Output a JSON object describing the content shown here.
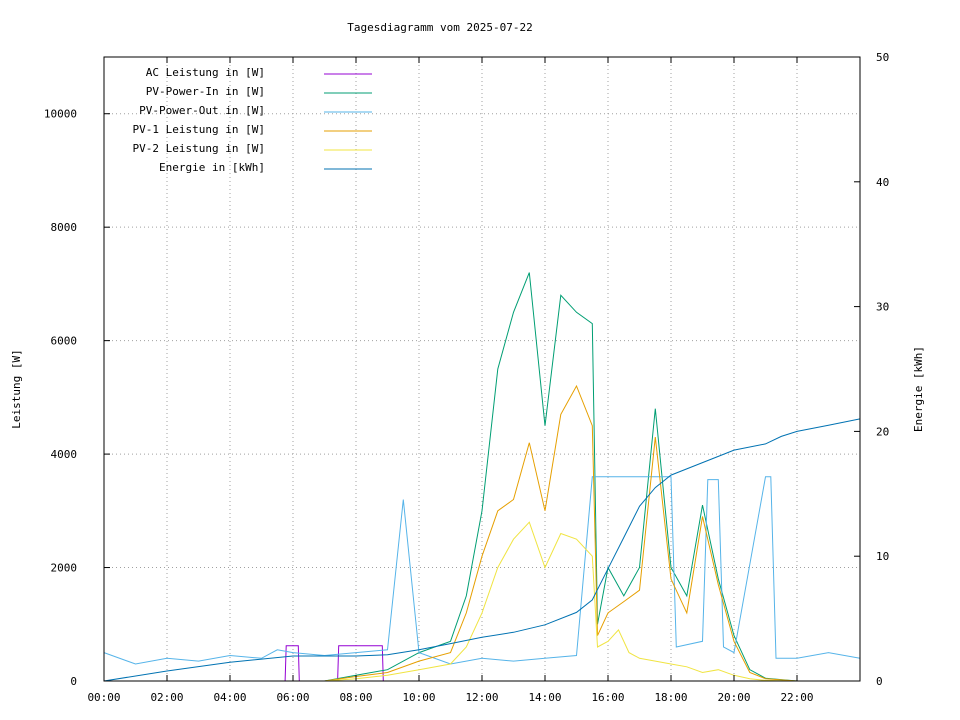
{
  "chart_data": {
    "type": "line",
    "title": "Tagesdiagramm vom 2025-07-22",
    "ylabel": "Leistung [W]",
    "y2label": "Energie [kWh]",
    "xlim": [
      "00:00",
      "24:00"
    ],
    "ylim": [
      0,
      11000
    ],
    "y2lim": [
      0,
      50
    ],
    "x_ticks": [
      "00:00",
      "02:00",
      "04:00",
      "06:00",
      "08:00",
      "10:00",
      "12:00",
      "14:00",
      "16:00",
      "18:00",
      "20:00",
      "22:00"
    ],
    "y_ticks": [
      0,
      2000,
      4000,
      6000,
      8000,
      10000
    ],
    "y2_ticks": [
      0,
      10,
      20,
      30,
      40,
      50
    ],
    "grid": true,
    "legend_position": "top-left",
    "series": [
      {
        "name": "AC Leistung in [W]",
        "color": "#9400d3",
        "axis": "left",
        "points": [
          [
            "00:00",
            0
          ],
          [
            "05:45",
            0
          ],
          [
            "05:47",
            620
          ],
          [
            "06:10",
            620
          ],
          [
            "06:12",
            0
          ],
          [
            "07:25",
            0
          ],
          [
            "07:27",
            620
          ],
          [
            "08:50",
            620
          ],
          [
            "08:52",
            0
          ],
          [
            "24:00",
            0
          ]
        ]
      },
      {
        "name": "PV-Power-In in [W]",
        "color": "#009e73",
        "axis": "left",
        "points": [
          [
            "00:00",
            0
          ],
          [
            "07:00",
            0
          ],
          [
            "08:00",
            100
          ],
          [
            "09:00",
            200
          ],
          [
            "10:00",
            500
          ],
          [
            "11:00",
            700
          ],
          [
            "11:30",
            1500
          ],
          [
            "12:00",
            3000
          ],
          [
            "12:30",
            5500
          ],
          [
            "13:00",
            6500
          ],
          [
            "13:30",
            7200
          ],
          [
            "14:00",
            4500
          ],
          [
            "14:30",
            6800
          ],
          [
            "15:00",
            6500
          ],
          [
            "15:30",
            6300
          ],
          [
            "15:40",
            1000
          ],
          [
            "16:00",
            2000
          ],
          [
            "16:30",
            1500
          ],
          [
            "17:00",
            2000
          ],
          [
            "17:30",
            4800
          ],
          [
            "18:00",
            2000
          ],
          [
            "18:30",
            1500
          ],
          [
            "19:00",
            3100
          ],
          [
            "19:30",
            1800
          ],
          [
            "20:00",
            800
          ],
          [
            "20:30",
            200
          ],
          [
            "21:00",
            50
          ],
          [
            "22:00",
            0
          ],
          [
            "24:00",
            0
          ]
        ]
      },
      {
        "name": "PV-Power-Out in [W]",
        "color": "#56b4e9",
        "axis": "left",
        "points": [
          [
            "00:00",
            500
          ],
          [
            "01:00",
            300
          ],
          [
            "02:00",
            400
          ],
          [
            "03:00",
            350
          ],
          [
            "04:00",
            450
          ],
          [
            "05:00",
            400
          ],
          [
            "05:30",
            550
          ],
          [
            "06:00",
            500
          ],
          [
            "07:00",
            450
          ],
          [
            "08:00",
            500
          ],
          [
            "09:00",
            550
          ],
          [
            "09:30",
            3200
          ],
          [
            "10:00",
            500
          ],
          [
            "11:00",
            300
          ],
          [
            "12:00",
            400
          ],
          [
            "13:00",
            350
          ],
          [
            "14:00",
            400
          ],
          [
            "15:00",
            450
          ],
          [
            "15:30",
            3600
          ],
          [
            "18:00",
            3600
          ],
          [
            "18:10",
            600
          ],
          [
            "19:00",
            700
          ],
          [
            "19:10",
            3550
          ],
          [
            "19:30",
            3550
          ],
          [
            "19:40",
            600
          ],
          [
            "20:00",
            500
          ],
          [
            "21:00",
            3600
          ],
          [
            "21:10",
            3600
          ],
          [
            "21:20",
            400
          ],
          [
            "22:00",
            400
          ],
          [
            "23:00",
            500
          ],
          [
            "24:00",
            400
          ]
        ]
      },
      {
        "name": "PV-1 Leistung in [W]",
        "color": "#e69f00",
        "axis": "left",
        "points": [
          [
            "00:00",
            0
          ],
          [
            "07:00",
            0
          ],
          [
            "08:00",
            80
          ],
          [
            "09:00",
            150
          ],
          [
            "10:00",
            350
          ],
          [
            "11:00",
            500
          ],
          [
            "11:30",
            1200
          ],
          [
            "12:00",
            2200
          ],
          [
            "12:30",
            3000
          ],
          [
            "13:00",
            3200
          ],
          [
            "13:30",
            4200
          ],
          [
            "14:00",
            3000
          ],
          [
            "14:30",
            4700
          ],
          [
            "15:00",
            5200
          ],
          [
            "15:30",
            4500
          ],
          [
            "15:40",
            800
          ],
          [
            "16:00",
            1200
          ],
          [
            "16:30",
            1400
          ],
          [
            "17:00",
            1600
          ],
          [
            "17:30",
            4300
          ],
          [
            "18:00",
            1800
          ],
          [
            "18:30",
            1200
          ],
          [
            "19:00",
            2900
          ],
          [
            "19:30",
            1700
          ],
          [
            "20:00",
            700
          ],
          [
            "20:30",
            150
          ],
          [
            "21:00",
            40
          ],
          [
            "22:00",
            0
          ],
          [
            "24:00",
            0
          ]
        ]
      },
      {
        "name": "PV-2 Leistung in [W]",
        "color": "#f0e442",
        "axis": "left",
        "points": [
          [
            "00:00",
            0
          ],
          [
            "07:00",
            0
          ],
          [
            "08:00",
            40
          ],
          [
            "09:00",
            100
          ],
          [
            "10:00",
            200
          ],
          [
            "11:00",
            300
          ],
          [
            "11:30",
            600
          ],
          [
            "12:00",
            1200
          ],
          [
            "12:30",
            2000
          ],
          [
            "13:00",
            2500
          ],
          [
            "13:30",
            2800
          ],
          [
            "14:00",
            2000
          ],
          [
            "14:30",
            2600
          ],
          [
            "15:00",
            2500
          ],
          [
            "15:30",
            2200
          ],
          [
            "15:40",
            600
          ],
          [
            "16:00",
            700
          ],
          [
            "16:20",
            900
          ],
          [
            "16:40",
            500
          ],
          [
            "17:00",
            400
          ],
          [
            "17:30",
            350
          ],
          [
            "18:00",
            300
          ],
          [
            "18:30",
            250
          ],
          [
            "19:00",
            150
          ],
          [
            "19:30",
            200
          ],
          [
            "20:00",
            100
          ],
          [
            "20:30",
            40
          ],
          [
            "21:00",
            10
          ],
          [
            "22:00",
            0
          ],
          [
            "24:00",
            0
          ]
        ]
      },
      {
        "name": "Energie in [kWh]",
        "color": "#0072b2",
        "axis": "right",
        "points": [
          [
            "00:00",
            0
          ],
          [
            "02:00",
            0.8
          ],
          [
            "04:00",
            1.5
          ],
          [
            "06:00",
            2.0
          ],
          [
            "07:00",
            2.0
          ],
          [
            "08:00",
            2.0
          ],
          [
            "09:00",
            2.1
          ],
          [
            "10:00",
            2.5
          ],
          [
            "11:00",
            3.0
          ],
          [
            "12:00",
            3.5
          ],
          [
            "13:00",
            3.9
          ],
          [
            "14:00",
            4.5
          ],
          [
            "15:00",
            5.5
          ],
          [
            "15:30",
            6.5
          ],
          [
            "16:00",
            9.0
          ],
          [
            "16:30",
            11.5
          ],
          [
            "17:00",
            14.0
          ],
          [
            "17:30",
            15.5
          ],
          [
            "18:00",
            16.5
          ],
          [
            "19:00",
            17.5
          ],
          [
            "19:30",
            18.0
          ],
          [
            "20:00",
            18.5
          ],
          [
            "21:00",
            19.0
          ],
          [
            "21:30",
            19.6
          ],
          [
            "22:00",
            20.0
          ],
          [
            "23:00",
            20.5
          ],
          [
            "24:00",
            21.0
          ]
        ]
      }
    ]
  }
}
